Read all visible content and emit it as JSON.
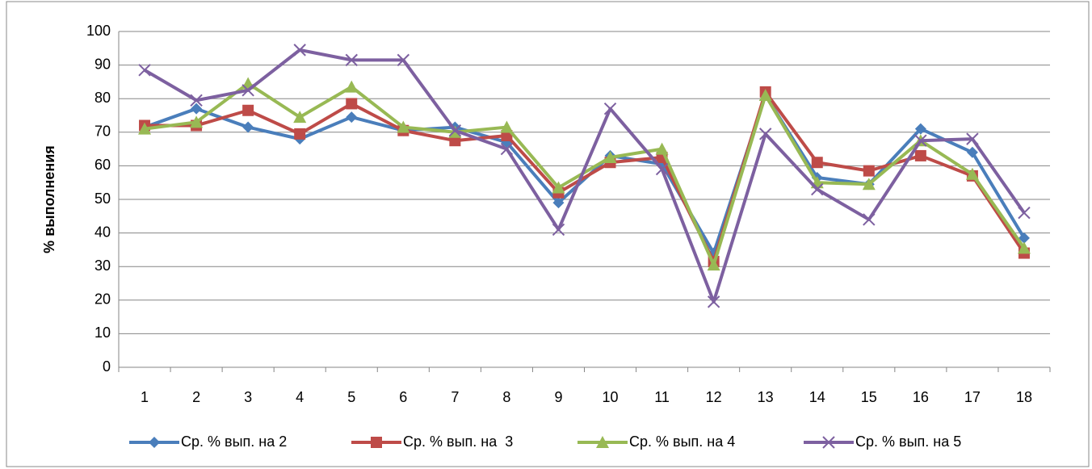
{
  "chart_data": {
    "type": "line",
    "y_label": "% выполнения",
    "categories": [
      1,
      2,
      3,
      4,
      5,
      6,
      7,
      8,
      9,
      10,
      11,
      12,
      13,
      14,
      15,
      16,
      17,
      18
    ],
    "series": [
      {
        "name": "Ср. % вып. на 2",
        "color": "#4a7ebb",
        "marker": "diamond",
        "values": [
          71.5,
          77,
          71.5,
          68,
          74.5,
          70.5,
          71.5,
          67,
          49,
          63,
          60.5,
          34,
          81,
          56.5,
          54.5,
          71,
          64,
          38.5
        ]
      },
      {
        "name": "Ср. % вып. на  3",
        "color": "#be4b48",
        "marker": "square",
        "values": [
          72,
          72,
          76.5,
          69.5,
          78.5,
          70.5,
          67.5,
          69,
          52,
          61,
          62.5,
          31.5,
          82,
          61,
          58.5,
          63,
          57,
          34
        ]
      },
      {
        "name": "Ср. % вып. на 4",
        "color": "#98b954",
        "marker": "triangle",
        "values": [
          71,
          73,
          84.5,
          74.5,
          83.5,
          71.5,
          70,
          71.5,
          53.5,
          62.5,
          65,
          30.5,
          81,
          55,
          54.5,
          67.5,
          57.5,
          35.5
        ]
      },
      {
        "name": "Ср. % вып. на 5",
        "color": "#7d60a0",
        "marker": "x",
        "values": [
          88.5,
          79.5,
          82.5,
          94.5,
          91.5,
          91.5,
          70.5,
          65,
          41,
          77,
          59,
          19.5,
          69.5,
          53,
          44,
          67.5,
          68,
          46
        ]
      }
    ],
    "ylim": [
      0,
      100
    ],
    "yticks": [
      0,
      10,
      20,
      30,
      40,
      50,
      60,
      70,
      80,
      90,
      100
    ],
    "grid": true,
    "legend": "bottom"
  }
}
